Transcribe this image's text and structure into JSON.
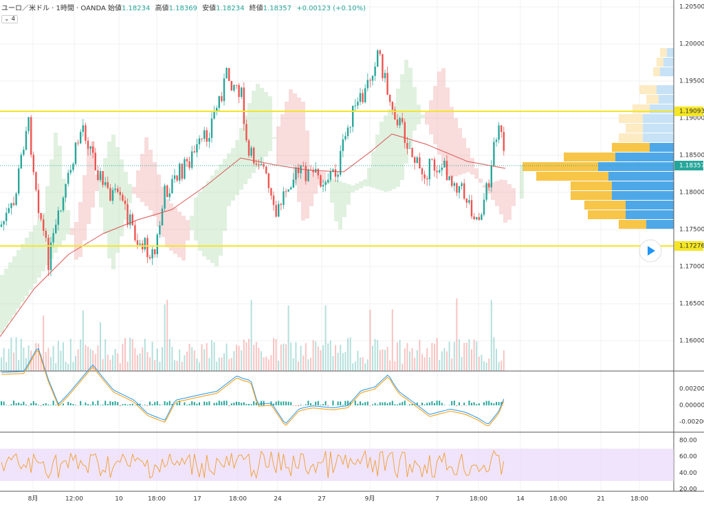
{
  "header": {
    "symbol": "ユーロ／米ドル · 1時間 · OANDA",
    "ohlc": [
      {
        "label": "始値",
        "value": "1.18234"
      },
      {
        "label": "高値",
        "value": "1.18369"
      },
      {
        "label": "安値",
        "value": "1.18234"
      },
      {
        "label": "終値",
        "value": "1.18357"
      }
    ],
    "change": "+0.00123 (+0.10%)",
    "indicator_count": "4"
  },
  "price_axis": {
    "ticks": [
      "1.20500",
      "1.20000",
      "1.19500",
      "1.19000",
      "1.18500",
      "1.18000",
      "1.17500",
      "1.17000",
      "1.16500",
      "1.16000"
    ],
    "markers": [
      "1.19093",
      "1.18357",
      "1.17276"
    ]
  },
  "macd_axis": {
    "ticks": [
      "0.00200",
      "0.00000",
      "-0.00200"
    ]
  },
  "rsi_axis": {
    "ticks": [
      "80.00",
      "60.00",
      "40.00",
      "20.00"
    ]
  },
  "time_axis": {
    "labels": [
      "8月",
      "12:00",
      "10",
      "18:00",
      "17",
      "18:00",
      "24",
      "27",
      "9月",
      "7",
      "18:00",
      "14",
      "18:00",
      "21",
      "18:00"
    ]
  }
}
